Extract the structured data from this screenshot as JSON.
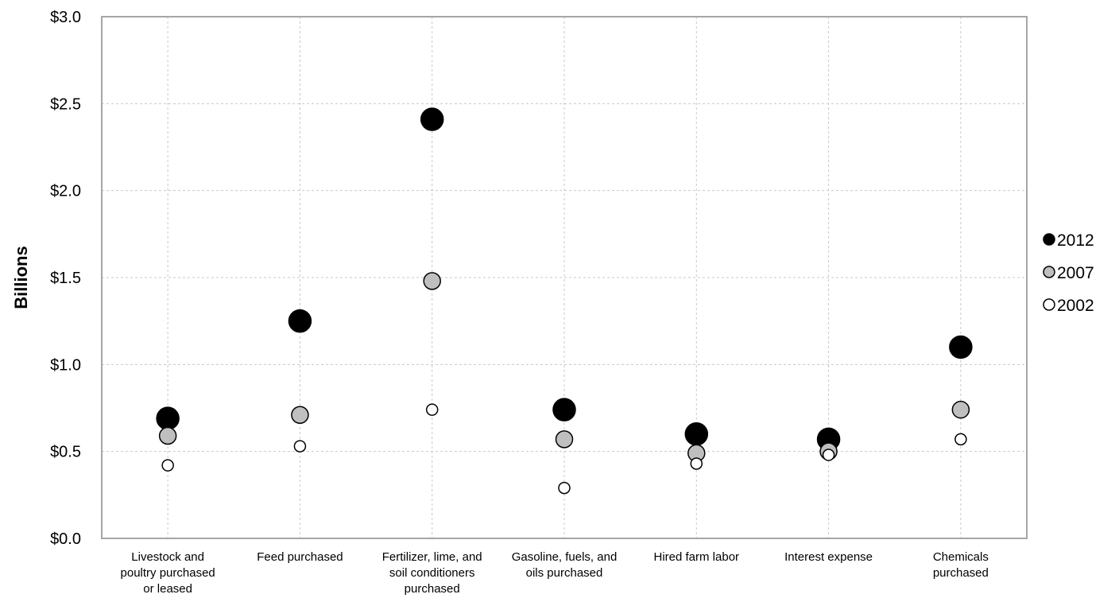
{
  "chart_data": {
    "type": "scatter",
    "title": "",
    "xlabel": "",
    "ylabel": "Billions",
    "ylim": [
      0,
      3.0
    ],
    "yticks": [
      0,
      0.5,
      1.0,
      1.5,
      2.0,
      2.5,
      3.0
    ],
    "ytick_labels": [
      "$0.0",
      "$0.5",
      "$1.0",
      "$1.5",
      "$2.0",
      "$2.5",
      "$3.0"
    ],
    "grid": true,
    "legend_position": "right",
    "categories": [
      [
        "Livestock and",
        "poultry purchased",
        "or leased"
      ],
      [
        "Feed purchased"
      ],
      [
        "Fertilizer, lime, and",
        "soil conditioners",
        "purchased"
      ],
      [
        "Gasoline, fuels, and",
        "oils purchased"
      ],
      [
        "Hired farm labor"
      ],
      [
        "Interest expense"
      ],
      [
        "Chemicals",
        "purchased"
      ]
    ],
    "series": [
      {
        "name": "2012",
        "color": "#000000",
        "marker_size": "large",
        "values": [
          0.69,
          1.25,
          2.41,
          0.74,
          0.6,
          0.57,
          1.1
        ]
      },
      {
        "name": "2007",
        "color": "#bfbfbf",
        "marker_size": "medium",
        "values": [
          0.59,
          0.71,
          1.48,
          0.57,
          0.49,
          0.5,
          0.74
        ]
      },
      {
        "name": "2002",
        "color": "#ffffff",
        "marker_size": "small",
        "values": [
          0.42,
          0.53,
          0.74,
          0.29,
          0.43,
          0.48,
          0.57
        ]
      }
    ]
  }
}
